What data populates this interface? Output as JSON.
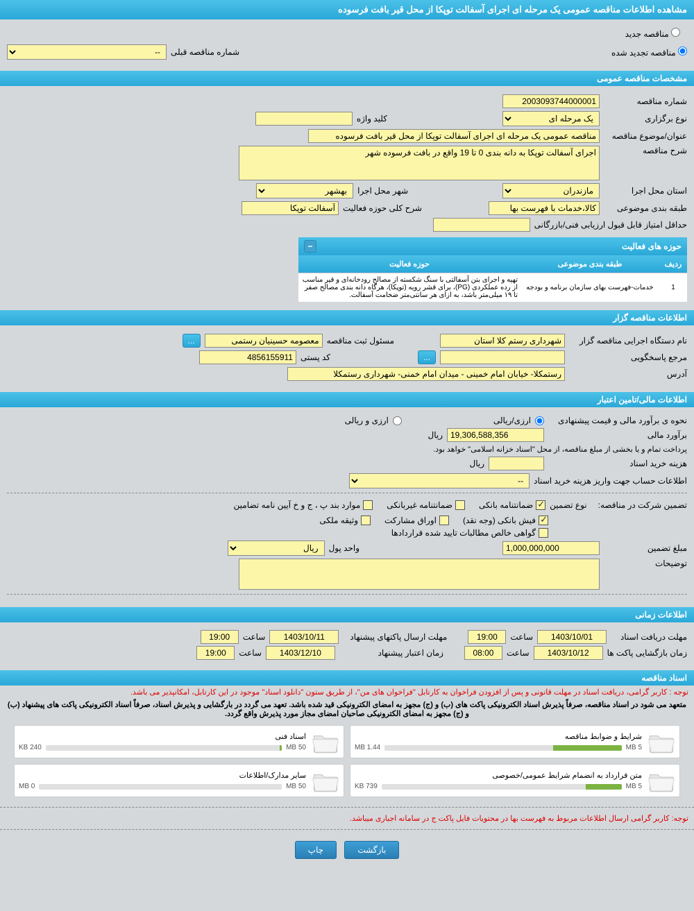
{
  "pageTitle": "مشاهده اطلاعات مناقصه عمومی یک مرحله ای اجرای آسفالت توپکا از محل قیر بافت فرسوده",
  "radios": {
    "new": "مناقصه جدید",
    "renewed": "مناقصه تجدید شده"
  },
  "prevTenderLabel": "شماره مناقصه قبلی",
  "prevTenderValue": "--",
  "sections": {
    "general": "مشخصات مناقصه عمومی",
    "organizer": "اطلاعات مناقصه گزار",
    "financial": "اطلاعات مالی/تامین اعتبار",
    "timing": "اطلاعات زمانی",
    "documents": "اسناد مناقصه"
  },
  "general": {
    "tenderNoLabel": "شماره مناقصه",
    "tenderNo": "2003093744000001",
    "holdTypeLabel": "نوع برگزاری",
    "holdType": "یک مرحله ای",
    "keywordLabel": "کلید واژه",
    "keyword": "",
    "subjectLabel": "عنوان/موضوع مناقصه",
    "subject": "مناقصه عمومی یک مرحله ای اجرای آسفالت توپکا از محل قیر بافت فرسوده",
    "descLabel": "شرح مناقصه",
    "desc": "اجرای آسفالت توپکا به دانه بندی 0 تا 19 واقع در بافت فرسوده شهر",
    "provinceLabel": "استان محل اجرا",
    "province": "مازندران",
    "cityLabel": "شهر محل اجرا",
    "city": "بهشهر",
    "classLabel": "طبقه بندی موضوعی",
    "className": "کالا،خدمات با فهرست بها",
    "activityDescLabel": "شرح کلی حوزه فعالیت",
    "activityDesc": "آسفالت توپکا",
    "minScoreLabel": "حداقل امتیاز قابل قبول ارزیابی فنی/بازرگانی",
    "minScore": ""
  },
  "activityTable": {
    "title": "حوزه های فعالیت",
    "cols": [
      "ردیف",
      "طبقه بندی موضوعی",
      "حوزه فعالیت"
    ],
    "rows": [
      [
        "1",
        "خدمات-فهرست بهای سازمان برنامه و بودجه",
        "تهیه و اجرای بتن آسفالتی با سنگ شکسته از مصالح رودخانه‌ای و قیر مناسب از رده عملکردی (PG)، برای قشر رویه (توپکا)، هرگاه دانه بندی مصالح صفر تا ۱۹ میلی‌متر باشد، به ازای هر سانتی‌متر ضخامت آسفالت."
      ]
    ]
  },
  "organizer": {
    "execNameLabel": "نام دستگاه اجرایی مناقصه گزار",
    "execName": "شهرداری رستم کلا استان",
    "officerLabel": "مسئول ثبت مناقصه",
    "officer": "معصومه حسینیان رستمی",
    "respRefLabel": "مرجع پاسخگویی",
    "respRef": "",
    "postalLabel": "کد پستی",
    "postal": "4856155911",
    "addressLabel": "آدرس",
    "address": "رستمکلا- خیابان امام خمینی - میدان امام خمنی- شهرداری رستمکلا"
  },
  "financial": {
    "estimateLabel": "نحوه ی برآورد مالی و قیمت پیشنهادی",
    "opt1": "ارزی/ریالی",
    "opt2": "ارزی و ریالی",
    "amountLabel": "برآورد مالی",
    "amount": "19,306,588,356",
    "unit": "ریال",
    "treasuryNote": "پرداخت تمام و یا بخشی از مبلغ مناقصه، از محل \"اسناد خزانه اسلامی\" خواهد بود.",
    "buyCostLabel": "هزینه خرید اسناد",
    "buyCostUnit": "ریال",
    "depositAcctLabel": "اطلاعات حساب جهت واریز هزینه خرید اسناد",
    "depositAcctValue": "--",
    "guaranteeTitle": "تضمین شرکت در مناقصه:",
    "guaranteeTypeLabel": "نوع تضمین",
    "chk": {
      "bank": "ضمانتنامه بانکی",
      "nonbank": "ضمانتنامه غیربانکی",
      "other": "موارد بند پ ، ج و خ آیین نامه تضامین",
      "cash": "فیش بانکی (وجه نقد)",
      "share": "اوراق مشارکت",
      "property": "وثیقه ملکی",
      "receivable": "گواهی خالص مطالبات تایید شده قراردادها"
    },
    "guarAmountLabel": "مبلغ تضمین",
    "guarAmount": "1,000,000,000",
    "guarUnitLabel": "واحد پول",
    "guarUnit": "ریال",
    "notesLabel": "توضیحات"
  },
  "timing": {
    "recvDeadlineLabel": "مهلت دریافت اسناد",
    "recvDate": "1403/10/01",
    "recvTime": "19:00",
    "sendDeadlineLabel": "مهلت ارسال پاکتهای پیشنهاد",
    "sendDate": "1403/10/11",
    "sendTime": "19:00",
    "openLabel": "زمان بازگشایی پاکت ها",
    "openDate": "1403/10/12",
    "openTime": "08:00",
    "validLabel": "زمان اعتبار پیشنهاد",
    "validDate": "1403/12/10",
    "validTime": "19:00",
    "timeWord": "ساعت"
  },
  "documents": {
    "notice1": "توجه : کاربر گرامی، دریافت اسناد در مهلت قانونی و پس از افزودن فراخوان به کارتابل \"فراخوان های من\"، از طریق ستون \"دانلود اسناد\" موجود در این کارتابل، امکانپذیر می باشد.",
    "notice2": "متعهد می شود در اسناد مناقصه، صرفاً پذیرش اسناد الکترونیکی پاکت های (ب) و (ج) مجهز به امضای الکترونیکی قید شده باشد. تعهد می گردد در بارگشایی و پذیرش اسناد، صرفاً اسناد الکترونیکی پاکت های پیشنهاد (ب) و (ج) مجهز به امضای الکترونیکی صاحبان امضای مجاز مورد پذیرش واقع گردد.",
    "items": [
      {
        "title": "شرایط و ضوابط مناقصه",
        "used": "1.44 MB",
        "cap": "5 MB",
        "pct": 29
      },
      {
        "title": "اسناد فنی",
        "used": "240 KB",
        "cap": "50 MB",
        "pct": 1
      },
      {
        "title": "متن قرارداد به انضمام شرایط عمومی/خصوصی",
        "used": "739 KB",
        "cap": "5 MB",
        "pct": 15
      },
      {
        "title": "سایر مدارک/اطلاعات",
        "used": "0 MB",
        "cap": "50 MB",
        "pct": 0
      }
    ],
    "footerNotice": "توجه: کاربر گرامی ارسال اطلاعات مربوط به فهرست بها در محتویات فایل پاکت ج در سامانه اجباری میباشد."
  },
  "buttons": {
    "back": "بازگشت",
    "print": "چاپ"
  },
  "colors": {
    "headerGrad1": "#4bc1e8",
    "headerGrad2": "#2aa8d8",
    "field": "#fbf6a8",
    "bg": "#d4d8db"
  }
}
